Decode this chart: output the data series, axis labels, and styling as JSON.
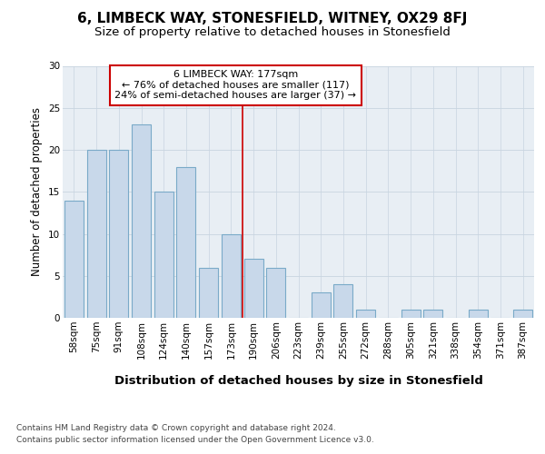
{
  "title": "6, LIMBECK WAY, STONESFIELD, WITNEY, OX29 8FJ",
  "subtitle": "Size of property relative to detached houses in Stonesfield",
  "xlabel_bottom": "Distribution of detached houses by size in Stonesfield",
  "ylabel": "Number of detached properties",
  "categories": [
    "58sqm",
    "75sqm",
    "91sqm",
    "108sqm",
    "124sqm",
    "140sqm",
    "157sqm",
    "173sqm",
    "190sqm",
    "206sqm",
    "223sqm",
    "239sqm",
    "255sqm",
    "272sqm",
    "288sqm",
    "305sqm",
    "321sqm",
    "338sqm",
    "354sqm",
    "371sqm",
    "387sqm"
  ],
  "values": [
    14,
    20,
    20,
    23,
    15,
    18,
    6,
    10,
    7,
    6,
    0,
    3,
    4,
    1,
    0,
    1,
    1,
    0,
    1,
    0,
    1
  ],
  "bar_color": "#c8d8ea",
  "bar_edgecolor": "#7aaac8",
  "bar_linewidth": 0.8,
  "vline_index": 7,
  "vline_color": "#cc0000",
  "vline_linewidth": 1.2,
  "annotation_line1": "6 LIMBECK WAY: 177sqm",
  "annotation_line2": "← 76% of detached houses are smaller (117)",
  "annotation_line3": "24% of semi-detached houses are larger (37) →",
  "annotation_box_edgecolor": "#cc0000",
  "annotation_box_facecolor": "white",
  "ylim": [
    0,
    30
  ],
  "yticks": [
    0,
    5,
    10,
    15,
    20,
    25,
    30
  ],
  "grid_color": "#c8d4e0",
  "background_color": "#e8eef4",
  "footer_line1": "Contains HM Land Registry data © Crown copyright and database right 2024.",
  "footer_line2": "Contains public sector information licensed under the Open Government Licence v3.0.",
  "title_fontsize": 11,
  "subtitle_fontsize": 9.5,
  "ylabel_fontsize": 8.5,
  "xlabel_fontsize": 9.5,
  "tick_fontsize": 7.5,
  "annotation_fontsize": 8,
  "footer_fontsize": 6.5
}
